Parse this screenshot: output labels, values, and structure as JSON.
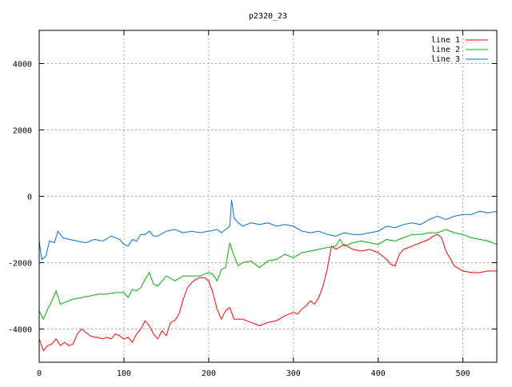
{
  "chart_data": {
    "type": "line",
    "title": "p2320_23",
    "xlabel": "",
    "ylabel": "",
    "xlim": [
      0,
      540
    ],
    "ylim": [
      -5000,
      5000
    ],
    "xticks": [
      0,
      100,
      200,
      300,
      400,
      500
    ],
    "yticks": [
      -4000,
      -2000,
      0,
      2000,
      4000
    ],
    "grid": true,
    "legend_position": "top-right",
    "series": [
      {
        "name": "line 1",
        "color": "#ff0000",
        "points": [
          [
            0,
            -4300
          ],
          [
            5,
            -4650
          ],
          [
            10,
            -4500
          ],
          [
            15,
            -4450
          ],
          [
            20,
            -4300
          ],
          [
            25,
            -4500
          ],
          [
            30,
            -4400
          ],
          [
            35,
            -4500
          ],
          [
            40,
            -4450
          ],
          [
            45,
            -4150
          ],
          [
            50,
            -4000
          ],
          [
            55,
            -4100
          ],
          [
            60,
            -4200
          ],
          [
            65,
            -4250
          ],
          [
            70,
            -4250
          ],
          [
            75,
            -4300
          ],
          [
            80,
            -4250
          ],
          [
            85,
            -4300
          ],
          [
            90,
            -4150
          ],
          [
            95,
            -4200
          ],
          [
            100,
            -4300
          ],
          [
            105,
            -4250
          ],
          [
            110,
            -4400
          ],
          [
            115,
            -4150
          ],
          [
            120,
            -4000
          ],
          [
            125,
            -3750
          ],
          [
            130,
            -3900
          ],
          [
            135,
            -4150
          ],
          [
            140,
            -4300
          ],
          [
            145,
            -4050
          ],
          [
            150,
            -4200
          ],
          [
            155,
            -3800
          ],
          [
            160,
            -3750
          ],
          [
            165,
            -3550
          ],
          [
            170,
            -3100
          ],
          [
            175,
            -2750
          ],
          [
            180,
            -2600
          ],
          [
            185,
            -2500
          ],
          [
            190,
            -2450
          ],
          [
            195,
            -2450
          ],
          [
            200,
            -2550
          ],
          [
            205,
            -2900
          ],
          [
            210,
            -3400
          ],
          [
            215,
            -3700
          ],
          [
            220,
            -3450
          ],
          [
            225,
            -3350
          ],
          [
            230,
            -3700
          ],
          [
            240,
            -3700
          ],
          [
            250,
            -3800
          ],
          [
            260,
            -3900
          ],
          [
            270,
            -3800
          ],
          [
            280,
            -3750
          ],
          [
            290,
            -3600
          ],
          [
            300,
            -3500
          ],
          [
            305,
            -3550
          ],
          [
            310,
            -3400
          ],
          [
            315,
            -3300
          ],
          [
            320,
            -3150
          ],
          [
            325,
            -3250
          ],
          [
            330,
            -3050
          ],
          [
            335,
            -2700
          ],
          [
            340,
            -2200
          ],
          [
            345,
            -1500
          ],
          [
            350,
            -1600
          ],
          [
            360,
            -1450
          ],
          [
            370,
            -1600
          ],
          [
            380,
            -1650
          ],
          [
            390,
            -1600
          ],
          [
            400,
            -1700
          ],
          [
            410,
            -1900
          ],
          [
            415,
            -2050
          ],
          [
            420,
            -2100
          ],
          [
            425,
            -1750
          ],
          [
            430,
            -1600
          ],
          [
            440,
            -1500
          ],
          [
            450,
            -1400
          ],
          [
            460,
            -1300
          ],
          [
            465,
            -1200
          ],
          [
            470,
            -1150
          ],
          [
            475,
            -1250
          ],
          [
            480,
            -1650
          ],
          [
            490,
            -2100
          ],
          [
            500,
            -2250
          ],
          [
            510,
            -2300
          ],
          [
            520,
            -2300
          ],
          [
            530,
            -2250
          ],
          [
            540,
            -2250
          ]
        ]
      },
      {
        "name": "line 2",
        "color": "#00b000",
        "points": [
          [
            0,
            -3450
          ],
          [
            5,
            -3700
          ],
          [
            10,
            -3400
          ],
          [
            15,
            -3150
          ],
          [
            20,
            -2850
          ],
          [
            25,
            -3250
          ],
          [
            30,
            -3200
          ],
          [
            40,
            -3100
          ],
          [
            50,
            -3050
          ],
          [
            60,
            -3000
          ],
          [
            70,
            -2950
          ],
          [
            80,
            -2950
          ],
          [
            90,
            -2900
          ],
          [
            100,
            -2900
          ],
          [
            105,
            -3050
          ],
          [
            110,
            -2800
          ],
          [
            115,
            -2850
          ],
          [
            120,
            -2750
          ],
          [
            125,
            -2500
          ],
          [
            130,
            -2300
          ],
          [
            135,
            -2650
          ],
          [
            140,
            -2700
          ],
          [
            145,
            -2550
          ],
          [
            150,
            -2400
          ],
          [
            160,
            -2550
          ],
          [
            170,
            -2400
          ],
          [
            180,
            -2400
          ],
          [
            190,
            -2400
          ],
          [
            200,
            -2300
          ],
          [
            205,
            -2350
          ],
          [
            210,
            -2550
          ],
          [
            215,
            -2200
          ],
          [
            220,
            -2150
          ],
          [
            225,
            -1400
          ],
          [
            230,
            -1800
          ],
          [
            235,
            -2100
          ],
          [
            240,
            -2000
          ],
          [
            250,
            -1950
          ],
          [
            260,
            -2150
          ],
          [
            270,
            -1950
          ],
          [
            280,
            -1900
          ],
          [
            290,
            -1750
          ],
          [
            300,
            -1850
          ],
          [
            310,
            -1700
          ],
          [
            320,
            -1650
          ],
          [
            330,
            -1600
          ],
          [
            340,
            -1550
          ],
          [
            350,
            -1500
          ],
          [
            355,
            -1300
          ],
          [
            360,
            -1500
          ],
          [
            370,
            -1400
          ],
          [
            380,
            -1350
          ],
          [
            390,
            -1400
          ],
          [
            400,
            -1450
          ],
          [
            410,
            -1300
          ],
          [
            420,
            -1350
          ],
          [
            430,
            -1250
          ],
          [
            440,
            -1150
          ],
          [
            450,
            -1150
          ],
          [
            460,
            -1100
          ],
          [
            470,
            -1100
          ],
          [
            480,
            -1000
          ],
          [
            490,
            -1100
          ],
          [
            500,
            -1150
          ],
          [
            510,
            -1250
          ],
          [
            520,
            -1300
          ],
          [
            530,
            -1350
          ],
          [
            540,
            -1450
          ]
        ]
      },
      {
        "name": "line 3",
        "color": "#0070e0",
        "points": [
          [
            0,
            -1350
          ],
          [
            3,
            -1900
          ],
          [
            8,
            -1800
          ],
          [
            12,
            -1350
          ],
          [
            18,
            -1400
          ],
          [
            22,
            -1050
          ],
          [
            28,
            -1250
          ],
          [
            35,
            -1300
          ],
          [
            45,
            -1350
          ],
          [
            55,
            -1400
          ],
          [
            65,
            -1300
          ],
          [
            75,
            -1350
          ],
          [
            85,
            -1200
          ],
          [
            95,
            -1300
          ],
          [
            100,
            -1450
          ],
          [
            105,
            -1500
          ],
          [
            110,
            -1300
          ],
          [
            115,
            -1350
          ],
          [
            120,
            -1150
          ],
          [
            125,
            -1150
          ],
          [
            130,
            -1050
          ],
          [
            135,
            -1200
          ],
          [
            140,
            -1200
          ],
          [
            150,
            -1050
          ],
          [
            160,
            -1000
          ],
          [
            170,
            -1100
          ],
          [
            180,
            -1050
          ],
          [
            190,
            -1100
          ],
          [
            200,
            -1050
          ],
          [
            210,
            -1000
          ],
          [
            215,
            -1100
          ],
          [
            220,
            -1000
          ],
          [
            225,
            -900
          ],
          [
            227,
            -100
          ],
          [
            230,
            -650
          ],
          [
            235,
            -800
          ],
          [
            240,
            -900
          ],
          [
            250,
            -800
          ],
          [
            260,
            -850
          ],
          [
            270,
            -800
          ],
          [
            280,
            -900
          ],
          [
            290,
            -850
          ],
          [
            300,
            -900
          ],
          [
            310,
            -1050
          ],
          [
            320,
            -1100
          ],
          [
            330,
            -1050
          ],
          [
            340,
            -1150
          ],
          [
            350,
            -1200
          ],
          [
            360,
            -1100
          ],
          [
            370,
            -1150
          ],
          [
            380,
            -1150
          ],
          [
            390,
            -1100
          ],
          [
            400,
            -1050
          ],
          [
            410,
            -900
          ],
          [
            420,
            -950
          ],
          [
            430,
            -850
          ],
          [
            440,
            -800
          ],
          [
            450,
            -850
          ],
          [
            460,
            -700
          ],
          [
            470,
            -600
          ],
          [
            480,
            -700
          ],
          [
            490,
            -600
          ],
          [
            500,
            -550
          ],
          [
            510,
            -550
          ],
          [
            520,
            -450
          ],
          [
            530,
            -500
          ],
          [
            540,
            -450
          ]
        ]
      }
    ]
  }
}
